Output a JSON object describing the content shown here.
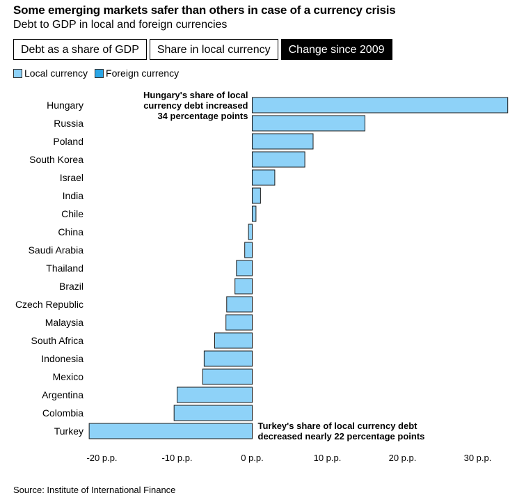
{
  "header": {
    "title": "Some emerging markets safer than others in case of a currency crisis",
    "subtitle": "Debt to GDP in local and foreign currencies"
  },
  "tabs": [
    {
      "label": "Debt as a share of GDP",
      "active": false
    },
    {
      "label": "Share in local currency",
      "active": false
    },
    {
      "label": "Change since 2009",
      "active": true
    }
  ],
  "legend": {
    "items": [
      {
        "label": "Local currency",
        "color": "#8ed2f8"
      },
      {
        "label": "Foreign currency",
        "color": "#2aa6e6"
      }
    ]
  },
  "source": "Source: Institute of International Finance",
  "chart_data": {
    "type": "bar",
    "orientation": "horizontal",
    "categories": [
      "Hungary",
      "Russia",
      "Poland",
      "South Korea",
      "Israel",
      "India",
      "Chile",
      "China",
      "Saudi Arabia",
      "Thailand",
      "Brazil",
      "Czech Republic",
      "Malaysia",
      "South Africa",
      "Indonesia",
      "Mexico",
      "Argentina",
      "Colombia",
      "Turkey"
    ],
    "series": [
      {
        "values": [
          34,
          15,
          8.1,
          7,
          3,
          1.1,
          0.5,
          -0.5,
          -1,
          -2.1,
          -2.3,
          -3.4,
          -3.5,
          -5,
          -6.4,
          -6.6,
          -10,
          -10.4,
          -21.7
        ]
      }
    ],
    "xlim": [
      -20,
      30
    ],
    "xticks": [
      -20,
      -10,
      0,
      10,
      20,
      30
    ],
    "xtick_labels": [
      "-20 p.p.",
      "-10 p.p.",
      "0 p.p.",
      "10 p.p.",
      "20 p.p.",
      "30 p.p."
    ],
    "bar_color": "#8ed2f8",
    "annotations": [
      {
        "category": "Hungary",
        "lines": [
          "Hungary's share of local",
          "currency debt increased",
          "34 percentage points"
        ]
      },
      {
        "category": "Turkey",
        "lines": [
          "Turkey's share of local currency debt",
          "decreased nearly 22 percentage points"
        ]
      }
    ]
  }
}
